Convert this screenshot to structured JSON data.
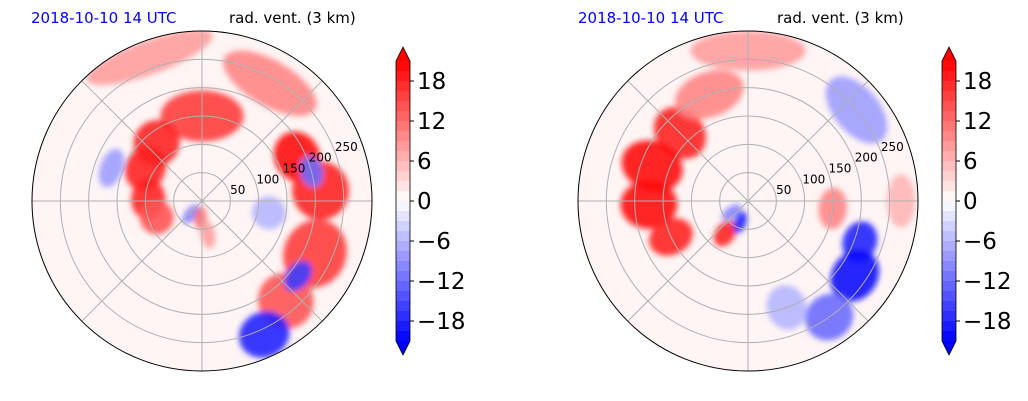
{
  "figure": {
    "colors": {
      "positive_strong": "#ff0000",
      "negative_strong": "#0000ff",
      "zero": "#ffffff",
      "grid": "#b0b0b0",
      "title_date": "#0000ff",
      "title_var": "#000000"
    }
  },
  "chart_data": [
    {
      "type": "heatmap",
      "projection": "polar",
      "title_left": "2018-10-10 14 UTC",
      "title_right": "rad. vent. (3 km)",
      "radial_ticks": [
        "50",
        "100",
        "150",
        "200",
        "250"
      ],
      "radial_tick_values": [
        50,
        100,
        150,
        200,
        250
      ],
      "r_max": 300,
      "angular_gridlines_deg": [
        0,
        45,
        90,
        135,
        180,
        225,
        270,
        315
      ],
      "colorbar": {
        "ticks": [
          "18",
          "12",
          "6",
          "0",
          "−6",
          "−12",
          "−18"
        ],
        "tick_values": [
          18,
          12,
          6,
          0,
          -6,
          -12,
          -18
        ],
        "range": [
          -21,
          21
        ],
        "levels": 28,
        "extend": "both",
        "cmap": "bwr"
      },
      "features": [
        {
          "theta_deg": 90,
          "dtheta_deg": 28,
          "r": 150,
          "dr": 45,
          "value": 16
        },
        {
          "theta_deg": 128,
          "dtheta_deg": 18,
          "r": 130,
          "dr": 40,
          "value": 18
        },
        {
          "theta_deg": 150,
          "dtheta_deg": 20,
          "r": 115,
          "dr": 35,
          "value": 18
        },
        {
          "theta_deg": 178,
          "dtheta_deg": 22,
          "r": 95,
          "dr": 30,
          "value": 18
        },
        {
          "theta_deg": 200,
          "dtheta_deg": 20,
          "r": 85,
          "dr": 30,
          "value": 14
        },
        {
          "theta_deg": 60,
          "dtheta_deg": 22,
          "r": 240,
          "dr": 40,
          "value": 10
        },
        {
          "theta_deg": 25,
          "dtheta_deg": 14,
          "r": 185,
          "dr": 40,
          "value": 20
        },
        {
          "theta_deg": 5,
          "dtheta_deg": 14,
          "r": 210,
          "dr": 50,
          "value": 18
        },
        {
          "theta_deg": -25,
          "dtheta_deg": 16,
          "r": 220,
          "dr": 55,
          "value": 16
        },
        {
          "theta_deg": -50,
          "dtheta_deg": 12,
          "r": 230,
          "dr": 50,
          "value": 14
        },
        {
          "theta_deg": -65,
          "dtheta_deg": 10,
          "r": 260,
          "dr": 40,
          "value": -18
        },
        {
          "theta_deg": -38,
          "dtheta_deg": 8,
          "r": 215,
          "dr": 20,
          "value": -16
        },
        {
          "theta_deg": 15,
          "dtheta_deg": 8,
          "r": 200,
          "dr": 20,
          "value": -12
        },
        {
          "theta_deg": 160,
          "dtheta_deg": 12,
          "r": 170,
          "dr": 20,
          "value": -8
        },
        {
          "theta_deg": 230,
          "dtheta_deg": 10,
          "r": 30,
          "dr": 20,
          "value": -10
        },
        {
          "theta_deg": -95,
          "dtheta_deg": 12,
          "r": 30,
          "dr": 20,
          "value": 12
        },
        {
          "theta_deg": -80,
          "dtheta_deg": 12,
          "r": 60,
          "dr": 25,
          "value": 8
        },
        {
          "theta_deg": -10,
          "dtheta_deg": 14,
          "r": 120,
          "dr": 30,
          "value": -6
        },
        {
          "theta_deg": 110,
          "dtheta_deg": 25,
          "r": 270,
          "dr": 30,
          "value": 8
        }
      ]
    },
    {
      "type": "heatmap",
      "projection": "polar",
      "title_left": "2018-10-10 14 UTC",
      "title_right": "rad. vent. (3 km)",
      "radial_ticks": [
        "50",
        "100",
        "150",
        "200",
        "250"
      ],
      "radial_tick_values": [
        50,
        100,
        150,
        200,
        250
      ],
      "r_max": 300,
      "angular_gridlines_deg": [
        0,
        45,
        90,
        135,
        180,
        225,
        270,
        315
      ],
      "colorbar": {
        "ticks": [
          "18",
          "12",
          "6",
          "0",
          "−6",
          "−12",
          "−18"
        ],
        "tick_values": [
          18,
          12,
          6,
          0,
          -6,
          -12,
          -18
        ],
        "range": [
          -21,
          21
        ],
        "levels": 28,
        "extend": "both",
        "cmap": "bwr"
      },
      "features": [
        {
          "theta_deg": 135,
          "dtheta_deg": 14,
          "r": 170,
          "dr": 50,
          "value": 18
        },
        {
          "theta_deg": 160,
          "dtheta_deg": 14,
          "r": 180,
          "dr": 55,
          "value": 20
        },
        {
          "theta_deg": 182,
          "dtheta_deg": 14,
          "r": 175,
          "dr": 50,
          "value": 20
        },
        {
          "theta_deg": 205,
          "dtheta_deg": 12,
          "r": 150,
          "dr": 40,
          "value": 18
        },
        {
          "theta_deg": 235,
          "dtheta_deg": 14,
          "r": 70,
          "dr": 25,
          "value": 18
        },
        {
          "theta_deg": 110,
          "dtheta_deg": 18,
          "r": 200,
          "dr": 40,
          "value": 10
        },
        {
          "theta_deg": 90,
          "dtheta_deg": 22,
          "r": 265,
          "dr": 35,
          "value": 8
        },
        {
          "theta_deg": 40,
          "dtheta_deg": 16,
          "r": 250,
          "dr": 40,
          "value": -8
        },
        {
          "theta_deg": -20,
          "dtheta_deg": 10,
          "r": 210,
          "dr": 30,
          "value": -18
        },
        {
          "theta_deg": -35,
          "dtheta_deg": 12,
          "r": 230,
          "dr": 40,
          "value": -20
        },
        {
          "theta_deg": -55,
          "dtheta_deg": 10,
          "r": 250,
          "dr": 40,
          "value": -12
        },
        {
          "theta_deg": 250,
          "dtheta_deg": 10,
          "r": 40,
          "dr": 20,
          "value": -18
        },
        {
          "theta_deg": 215,
          "dtheta_deg": 10,
          "r": 35,
          "dr": 20,
          "value": -10
        },
        {
          "theta_deg": -5,
          "dtheta_deg": 14,
          "r": 150,
          "dr": 25,
          "value": 10
        },
        {
          "theta_deg": -70,
          "dtheta_deg": 10,
          "r": 200,
          "dr": 40,
          "value": -6
        },
        {
          "theta_deg": 0,
          "dtheta_deg": 10,
          "r": 270,
          "dr": 25,
          "value": 6
        }
      ]
    }
  ]
}
